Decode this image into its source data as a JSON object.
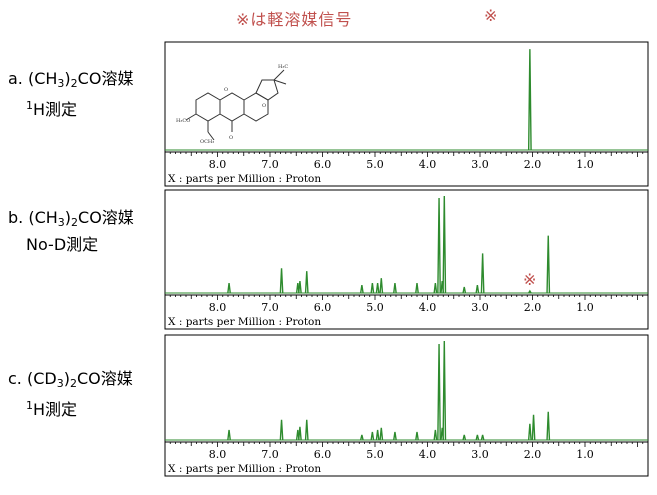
{
  "note": "※は軽溶媒信号",
  "asterisk": "※",
  "labels": {
    "a": {
      "prefix": "a. (CH",
      "sub": "3",
      "mid": ")",
      "sub2": "2",
      "suffix": "CO溶媒",
      "sup": "1",
      "line2": "H測定"
    },
    "b": {
      "prefix": "b. (CH",
      "sub": "3",
      "mid": ")",
      "sub2": "2",
      "suffix": "CO溶媒",
      "line2": "No-D測定"
    },
    "c": {
      "prefix": "c.  (CD",
      "sub": "3",
      "mid": ")",
      "sub2": "2",
      "suffix": "CO溶媒",
      "sup": "1",
      "line2": "H測定"
    }
  },
  "axis_caption": "X : parts per Million : Proton",
  "colors": {
    "spectrum": "#2e8b2e",
    "note": "#c0504d",
    "axis": "#000000"
  },
  "chart_data": [
    {
      "type": "line",
      "panel": "a",
      "xlabel": "X : parts per Million : Proton",
      "xlim": [
        9.0,
        -0.2
      ],
      "x_reversed": true,
      "xticks": [
        8.0,
        7.0,
        6.0,
        5.0,
        4.0,
        3.0,
        2.0,
        1.0
      ],
      "peaks": [
        {
          "ppm": 2.05,
          "height": 0.97
        }
      ]
    },
    {
      "type": "line",
      "panel": "b",
      "xlabel": "X : parts per Million : Proton",
      "xlim": [
        9.0,
        -0.2
      ],
      "x_reversed": true,
      "xticks": [
        8.0,
        7.0,
        6.0,
        5.0,
        4.0,
        3.0,
        2.0,
        1.0
      ],
      "peaks": [
        {
          "ppm": 7.78,
          "height": 0.1
        },
        {
          "ppm": 6.78,
          "height": 0.25
        },
        {
          "ppm": 6.47,
          "height": 0.1
        },
        {
          "ppm": 6.43,
          "height": 0.12
        },
        {
          "ppm": 6.3,
          "height": 0.22
        },
        {
          "ppm": 5.25,
          "height": 0.08
        },
        {
          "ppm": 5.05,
          "height": 0.1
        },
        {
          "ppm": 4.95,
          "height": 0.1
        },
        {
          "ppm": 4.88,
          "height": 0.15
        },
        {
          "ppm": 4.62,
          "height": 0.1
        },
        {
          "ppm": 4.2,
          "height": 0.1
        },
        {
          "ppm": 3.85,
          "height": 0.1
        },
        {
          "ppm": 3.78,
          "height": 0.96
        },
        {
          "ppm": 3.72,
          "height": 0.12
        },
        {
          "ppm": 3.68,
          "height": 0.98
        },
        {
          "ppm": 3.3,
          "height": 0.06
        },
        {
          "ppm": 3.05,
          "height": 0.08
        },
        {
          "ppm": 2.95,
          "height": 0.4
        },
        {
          "ppm": 2.05,
          "height": 0.02
        },
        {
          "ppm": 1.7,
          "height": 0.58
        }
      ]
    },
    {
      "type": "line",
      "panel": "c",
      "xlabel": "X : parts per Million : Proton",
      "xlim": [
        9.0,
        -0.2
      ],
      "x_reversed": true,
      "xticks": [
        8.0,
        7.0,
        6.0,
        5.0,
        4.0,
        3.0,
        2.0,
        1.0
      ],
      "peaks": [
        {
          "ppm": 7.78,
          "height": 0.1
        },
        {
          "ppm": 6.78,
          "height": 0.2
        },
        {
          "ppm": 6.47,
          "height": 0.1
        },
        {
          "ppm": 6.43,
          "height": 0.13
        },
        {
          "ppm": 6.3,
          "height": 0.2
        },
        {
          "ppm": 5.25,
          "height": 0.05
        },
        {
          "ppm": 5.05,
          "height": 0.08
        },
        {
          "ppm": 4.95,
          "height": 0.1
        },
        {
          "ppm": 4.88,
          "height": 0.12
        },
        {
          "ppm": 4.62,
          "height": 0.08
        },
        {
          "ppm": 4.2,
          "height": 0.08
        },
        {
          "ppm": 3.85,
          "height": 0.1
        },
        {
          "ppm": 3.78,
          "height": 0.95
        },
        {
          "ppm": 3.72,
          "height": 0.12
        },
        {
          "ppm": 3.68,
          "height": 0.98
        },
        {
          "ppm": 3.3,
          "height": 0.05
        },
        {
          "ppm": 3.05,
          "height": 0.05
        },
        {
          "ppm": 2.95,
          "height": 0.05
        },
        {
          "ppm": 2.05,
          "height": 0.16
        },
        {
          "ppm": 1.98,
          "height": 0.25
        },
        {
          "ppm": 1.7,
          "height": 0.28
        }
      ]
    }
  ]
}
